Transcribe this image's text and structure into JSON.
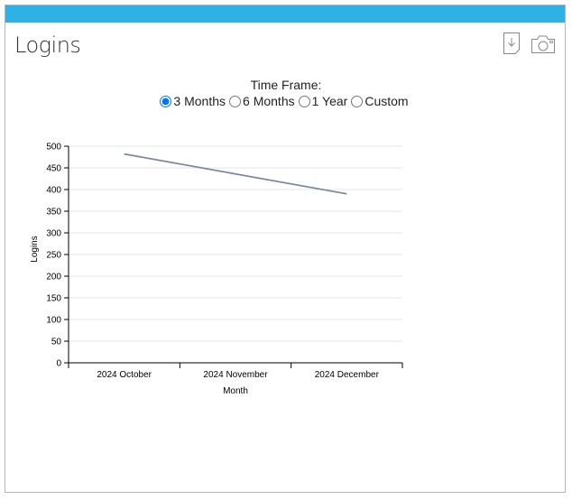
{
  "header": {
    "title": "Logins",
    "download_icon": "download-icon",
    "camera_icon": "camera-icon",
    "accent_color": "#2eb2e6"
  },
  "timeframe": {
    "label": "Time Frame:",
    "options": [
      "3 Months",
      "6 Months",
      "1 Year",
      "Custom"
    ],
    "selected": "3 Months"
  },
  "chart_data": {
    "type": "line",
    "categories": [
      "2024 October",
      "2024 November",
      "2024 December"
    ],
    "series": [
      {
        "values": [
          482,
          436,
          390
        ],
        "color": "#7b8aa0"
      }
    ],
    "xlabel": "Month",
    "ylabel": "Logins",
    "ylim": [
      0,
      500
    ],
    "yticks": [
      0,
      50,
      100,
      150,
      200,
      250,
      300,
      350,
      400,
      450,
      500
    ],
    "grid": true,
    "legend": "none"
  }
}
